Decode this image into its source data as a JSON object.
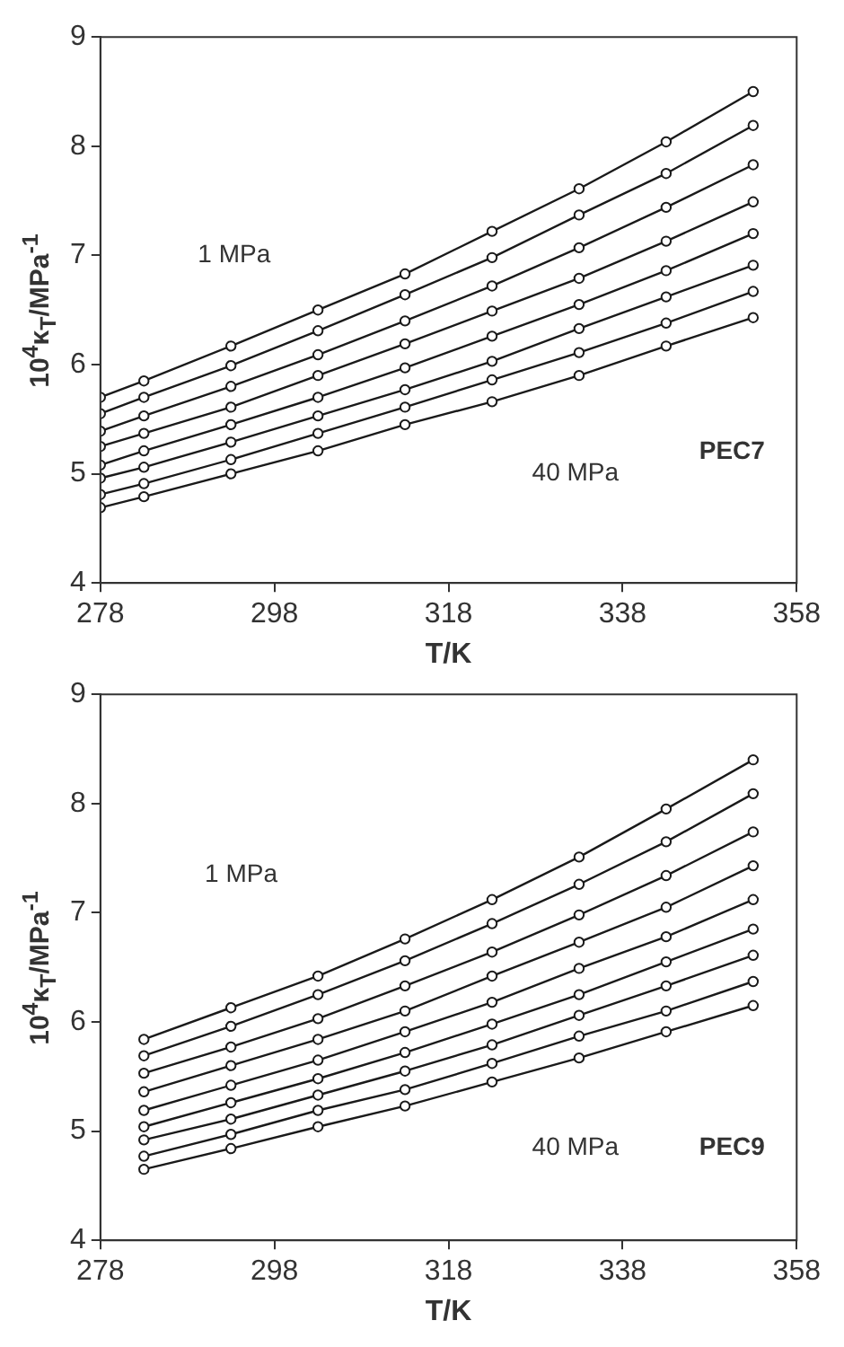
{
  "chart_data": [
    {
      "type": "line",
      "xlabel": "T/K",
      "ylabel": "10$^{4}$κ$_{T}$/MPa$^{-1}$",
      "x": [
        278,
        283,
        293,
        303,
        313,
        323,
        333,
        343,
        353
      ],
      "xlim": [
        278,
        358
      ],
      "xticks": [
        278,
        298,
        318,
        338,
        358
      ],
      "ylim": [
        4,
        9
      ],
      "yticks": [
        4,
        5,
        6,
        7,
        8,
        9
      ],
      "grid": false,
      "legend": false,
      "marker": "circle",
      "line_style": "solid",
      "series": [
        {
          "color": "#1a1a1a",
          "values": [
            5.7,
            5.85,
            6.17,
            6.5,
            6.83,
            7.22,
            7.61,
            8.04,
            8.5
          ]
        },
        {
          "color": "#1a1a1a",
          "values": [
            5.55,
            5.7,
            5.99,
            6.31,
            6.64,
            6.98,
            7.37,
            7.75,
            8.19
          ]
        },
        {
          "color": "#1a1a1a",
          "values": [
            5.39,
            5.53,
            5.8,
            6.09,
            6.4,
            6.72,
            7.07,
            7.44,
            7.83
          ]
        },
        {
          "color": "#1a1a1a",
          "values": [
            5.25,
            5.37,
            5.61,
            5.9,
            6.19,
            6.49,
            6.79,
            7.13,
            7.49
          ]
        },
        {
          "color": "#1a1a1a",
          "values": [
            5.08,
            5.21,
            5.45,
            5.7,
            5.97,
            6.26,
            6.55,
            6.86,
            7.2
          ]
        },
        {
          "color": "#1a1a1a",
          "values": [
            4.96,
            5.06,
            5.29,
            5.53,
            5.77,
            6.03,
            6.33,
            6.62,
            6.91
          ]
        },
        {
          "color": "#1a1a1a",
          "values": [
            4.81,
            4.91,
            5.13,
            5.37,
            5.61,
            5.86,
            6.11,
            6.38,
            6.67
          ]
        },
        {
          "color": "#1a1a1a",
          "values": [
            4.69,
            4.79,
            5.0,
            5.21,
            5.45,
            5.66,
            5.9,
            6.17,
            6.43
          ]
        }
      ],
      "annotations": [
        "1 MPa",
        "40 MPa",
        "PEC7"
      ]
    },
    {
      "type": "line",
      "xlabel": "T/K",
      "ylabel": "10$^{4}$κ$_{T}$/MPa$^{-1}$",
      "x": [
        283,
        293,
        303,
        313,
        323,
        333,
        343,
        353
      ],
      "xlim": [
        278,
        358
      ],
      "xticks": [
        278,
        298,
        318,
        338,
        358
      ],
      "ylim": [
        4,
        9
      ],
      "yticks": [
        4,
        5,
        6,
        7,
        8,
        9
      ],
      "grid": false,
      "legend": false,
      "marker": "circle",
      "line_style": "solid",
      "series": [
        {
          "color": "#1a1a1a",
          "values": [
            5.84,
            6.13,
            6.42,
            6.76,
            7.12,
            7.51,
            7.95,
            8.4
          ]
        },
        {
          "color": "#1a1a1a",
          "values": [
            5.69,
            5.96,
            6.25,
            6.56,
            6.9,
            7.26,
            7.65,
            8.09
          ]
        },
        {
          "color": "#1a1a1a",
          "values": [
            5.53,
            5.77,
            6.03,
            6.33,
            6.64,
            6.98,
            7.34,
            7.74
          ]
        },
        {
          "color": "#1a1a1a",
          "values": [
            5.36,
            5.6,
            5.84,
            6.1,
            6.42,
            6.73,
            7.05,
            7.43
          ]
        },
        {
          "color": "#1a1a1a",
          "values": [
            5.19,
            5.42,
            5.65,
            5.91,
            6.18,
            6.49,
            6.78,
            7.12
          ]
        },
        {
          "color": "#1a1a1a",
          "values": [
            5.04,
            5.26,
            5.48,
            5.72,
            5.98,
            6.25,
            6.55,
            6.85
          ]
        },
        {
          "color": "#1a1a1a",
          "values": [
            4.92,
            5.11,
            5.33,
            5.55,
            5.79,
            6.06,
            6.33,
            6.61
          ]
        },
        {
          "color": "#1a1a1a",
          "values": [
            4.77,
            4.97,
            5.19,
            5.38,
            5.62,
            5.87,
            6.1,
            6.37
          ]
        },
        {
          "color": "#1a1a1a",
          "values": [
            4.65,
            4.84,
            5.04,
            5.23,
            5.45,
            5.67,
            5.91,
            6.15
          ]
        }
      ],
      "annotations": [
        "1 MPa",
        "40 MPa",
        "PEC9"
      ]
    }
  ]
}
